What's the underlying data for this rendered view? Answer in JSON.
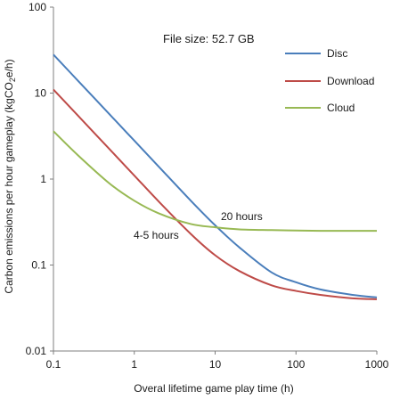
{
  "chart_data": {
    "type": "line",
    "annotation_top": "File size: 52.7 GB",
    "xlabel": "Overal lifetime game play time (h)",
    "ylabel": {
      "prefix": "Carbon emissions per hour gameplay (kgCO",
      "sub": "2",
      "suffix": "e/h)"
    },
    "xscale": "log",
    "yscale": "log",
    "xlim": [
      0.1,
      1000
    ],
    "ylim": [
      0.01,
      100
    ],
    "xticks": [
      "0.1",
      "1",
      "10",
      "100",
      "1000"
    ],
    "yticks": [
      "0.01",
      "0.1",
      "1",
      "10",
      "100"
    ],
    "grid": false,
    "legend_position": "top-right",
    "series": [
      {
        "name": "Disc",
        "color": "#4a7ebb",
        "x": [
          0.1,
          0.2,
          0.5,
          1,
          2,
          5,
          10,
          20,
          50,
          100,
          200,
          500,
          1000
        ],
        "y": [
          28,
          14,
          5.6,
          2.8,
          1.4,
          0.56,
          0.29,
          0.16,
          0.082,
          0.063,
          0.052,
          0.045,
          0.042
        ]
      },
      {
        "name": "Download",
        "color": "#be4b48",
        "x": [
          0.1,
          0.2,
          0.5,
          1,
          2,
          5,
          10,
          20,
          50,
          100,
          200,
          500,
          1000
        ],
        "y": [
          11,
          5.5,
          2.2,
          1.1,
          0.55,
          0.23,
          0.13,
          0.085,
          0.058,
          0.05,
          0.045,
          0.041,
          0.04
        ]
      },
      {
        "name": "Cloud",
        "color": "#98b954",
        "x": [
          0.1,
          0.2,
          0.5,
          1,
          2,
          5,
          10,
          20,
          50,
          100,
          200,
          500,
          1000
        ],
        "y": [
          3.6,
          1.9,
          0.88,
          0.56,
          0.4,
          0.3,
          0.275,
          0.26,
          0.255,
          0.252,
          0.25,
          0.25,
          0.25
        ]
      }
    ],
    "annotations": [
      {
        "text": "20 hours"
      },
      {
        "text": "4-5 hours"
      }
    ]
  }
}
